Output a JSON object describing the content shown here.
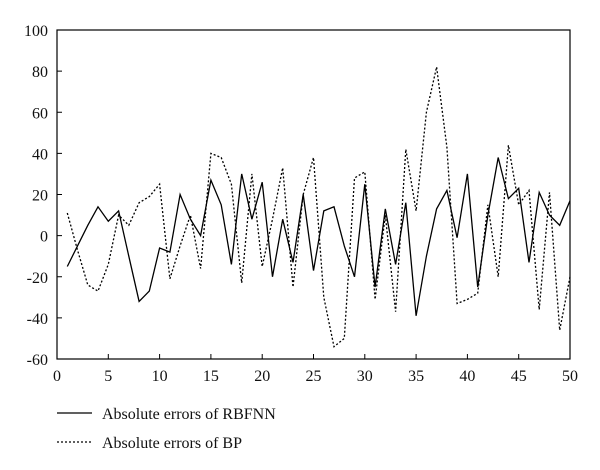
{
  "chart_data": {
    "type": "line",
    "xlim": [
      0,
      50
    ],
    "ylim": [
      -60,
      100
    ],
    "x_ticks": [
      0,
      5,
      10,
      15,
      20,
      25,
      30,
      35,
      40,
      45,
      50
    ],
    "y_ticks": [
      -60,
      -40,
      -20,
      0,
      20,
      40,
      60,
      80,
      100
    ],
    "grid": false,
    "legend_position": "bottom-left",
    "x": [
      1,
      2,
      3,
      4,
      5,
      6,
      7,
      8,
      9,
      10,
      11,
      12,
      13,
      14,
      15,
      16,
      17,
      18,
      19,
      20,
      21,
      22,
      23,
      24,
      25,
      26,
      27,
      28,
      29,
      30,
      31,
      32,
      33,
      34,
      35,
      36,
      37,
      38,
      39,
      40,
      41,
      42,
      43,
      44,
      45,
      46,
      47,
      48,
      49,
      50
    ],
    "series": [
      {
        "name": "Absolute errors of RBFNN",
        "style": "solid",
        "color": "#000000",
        "values": [
          -15,
          -5,
          5,
          14,
          7,
          12,
          -10,
          -32,
          -27,
          -6,
          -8,
          20,
          8,
          0,
          27,
          15,
          -14,
          30,
          8,
          26,
          -20,
          8,
          -13,
          20,
          -17,
          12,
          14,
          -5,
          -20,
          25,
          -25,
          13,
          -14,
          16,
          -39,
          -10,
          13,
          22,
          -1,
          30,
          -25,
          10,
          38,
          18,
          23,
          -13,
          21,
          10,
          5,
          17
        ]
      },
      {
        "name": "Absolute errors of BP",
        "style": "dotted",
        "color": "#000000",
        "values": [
          11,
          -7,
          -24,
          -27,
          -14,
          10,
          5,
          16,
          19,
          25,
          -21,
          -5,
          10,
          -16,
          40,
          38,
          25,
          -23,
          30,
          -15,
          8,
          33,
          -25,
          20,
          38,
          -30,
          -54,
          -50,
          28,
          31,
          -31,
          10,
          -37,
          42,
          12,
          60,
          82,
          43,
          -33,
          -31,
          -28,
          15,
          -20,
          44,
          15,
          22,
          -36,
          21,
          -46,
          -20
        ]
      }
    ]
  }
}
